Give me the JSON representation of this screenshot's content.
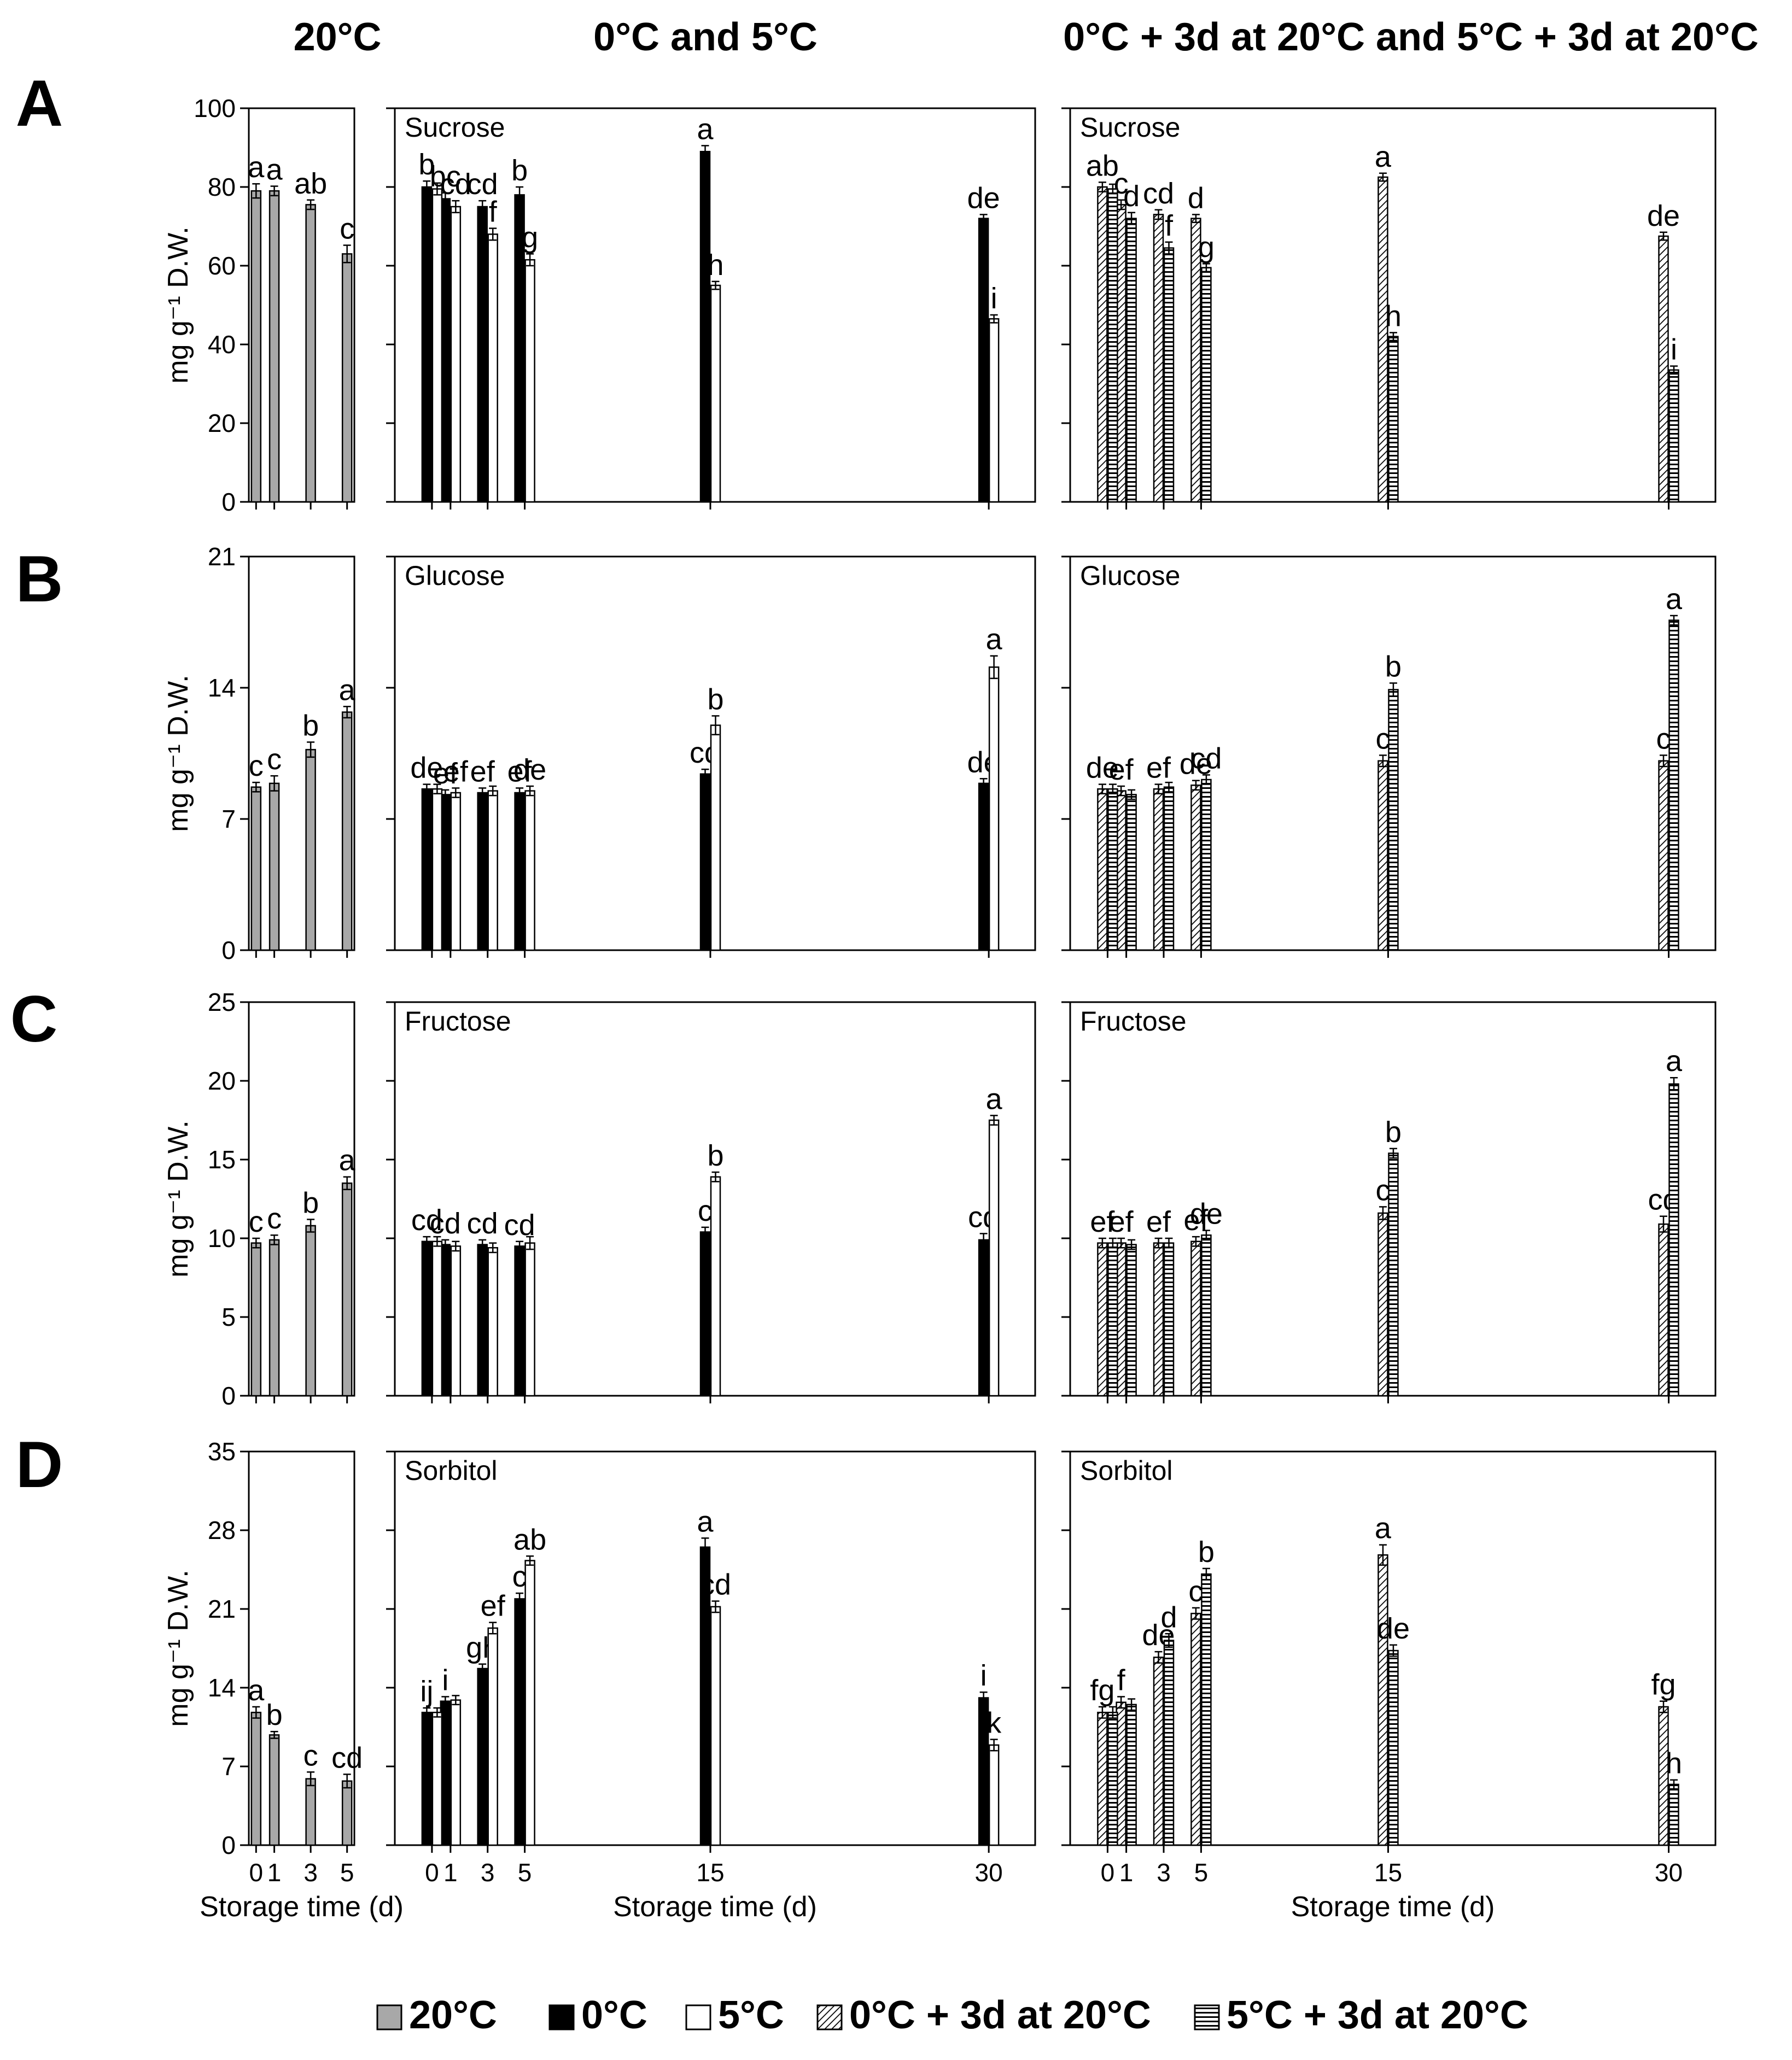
{
  "column_titles": [
    "20°C",
    "0°C and 5°C",
    "0°C + 3d at 20°C and 5°C + 3d at 20°C"
  ],
  "ylabel": "mg g⁻¹ D.W.",
  "xlabel": "Storage time (d)",
  "legend": [
    {
      "label": "20°C",
      "style": "gray"
    },
    {
      "label": "0°C",
      "style": "black"
    },
    {
      "label": "5°C",
      "style": "white"
    },
    {
      "label": "0°C + 3d at 20°C",
      "style": "diag"
    },
    {
      "label": "5°C + 3d at 20°C",
      "style": "horiz"
    }
  ],
  "colors": {
    "gray": "#a8a8a8",
    "black": "#000000",
    "white": "#ffffff"
  },
  "chart_data": [
    {
      "type": "bar",
      "row": "A",
      "column": "20°C",
      "title": "",
      "x": [
        0,
        1,
        3,
        5
      ],
      "xticks": [
        "0",
        "1",
        "3",
        "5"
      ],
      "xlim": [
        -0.4,
        5.4
      ],
      "ylim": [
        0,
        100
      ],
      "yticks": [
        0,
        20,
        40,
        60,
        80,
        100
      ],
      "series": [
        {
          "name": "20°C",
          "style": "gray",
          "values": [
            79,
            79,
            75.5,
            63
          ],
          "errors": [
            1.8,
            1.2,
            1.2,
            2.2
          ],
          "labels": [
            "a",
            "a",
            "ab",
            "c"
          ]
        }
      ]
    },
    {
      "type": "bar",
      "row": "A",
      "column": "0°C and 5°C",
      "title": "Sucrose",
      "x": [
        0,
        1,
        3,
        5,
        15,
        30
      ],
      "xticks": [
        "0",
        "1",
        "3",
        "5",
        "15",
        "30"
      ],
      "xlim": [
        -2,
        32.5
      ],
      "ylim": [
        0,
        100
      ],
      "yticks": [
        0,
        20,
        40,
        60,
        80,
        100
      ],
      "series": [
        {
          "name": "0°C",
          "style": "black",
          "values": [
            80,
            77,
            75,
            78,
            89,
            72
          ],
          "errors": [
            1.5,
            1.5,
            1.5,
            2,
            1.5,
            1
          ],
          "labels": [
            "b",
            "bc",
            "cd",
            "b",
            "a",
            "de"
          ]
        },
        {
          "name": "5°C",
          "style": "white",
          "values": [
            79.5,
            75,
            68,
            61.5,
            55,
            46.5
          ],
          "errors": [
            1.5,
            1.5,
            1.5,
            1.5,
            1,
            1
          ],
          "labels": [
            "",
            "cd",
            "f",
            "g",
            "h",
            "i"
          ]
        }
      ]
    },
    {
      "type": "bar",
      "row": "A",
      "column": "0°C + 3d at 20°C and 5°C + 3d at 20°C",
      "title": "Sucrose",
      "x": [
        0,
        1,
        3,
        5,
        15,
        30
      ],
      "xticks": [
        "0",
        "1",
        "3",
        "5",
        "15",
        "30"
      ],
      "xlim": [
        -2,
        32.5
      ],
      "ylim": [
        0,
        100
      ],
      "yticks": [
        0,
        20,
        40,
        60,
        80,
        100
      ],
      "series": [
        {
          "name": "0°C + 3d at 20°C",
          "style": "diag",
          "values": [
            80,
            75.5,
            73,
            72,
            82.5,
            67.5
          ],
          "errors": [
            1.2,
            1.2,
            1.2,
            1,
            1,
            1
          ],
          "labels": [
            "ab",
            "c",
            "cd",
            "d",
            "a",
            "de"
          ]
        },
        {
          "name": "5°C + 3d at 20°C",
          "style": "horiz",
          "values": [
            79.5,
            72,
            64.5,
            59.5,
            42,
            33.5
          ],
          "errors": [
            1.2,
            1.5,
            1.5,
            1,
            1,
            1
          ],
          "labels": [
            "",
            "d",
            "f",
            "g",
            "h",
            "i"
          ]
        }
      ]
    },
    {
      "type": "bar",
      "row": "B",
      "column": "20°C",
      "title": "",
      "x": [
        0,
        1,
        3,
        5
      ],
      "xticks": [
        "0",
        "1",
        "3",
        "5"
      ],
      "xlim": [
        -0.4,
        5.4
      ],
      "ylim": [
        0,
        21
      ],
      "yticks": [
        0,
        7,
        14,
        21
      ],
      "series": [
        {
          "name": "20°C",
          "style": "gray",
          "values": [
            8.7,
            8.9,
            10.7,
            12.7
          ],
          "errors": [
            0.25,
            0.4,
            0.4,
            0.3
          ],
          "labels": [
            "c",
            "c",
            "b",
            "a"
          ]
        }
      ]
    },
    {
      "type": "bar",
      "row": "B",
      "column": "0°C and 5°C",
      "title": "Glucose",
      "x": [
        0,
        1,
        3,
        5,
        15,
        30
      ],
      "xticks": [
        "0",
        "1",
        "3",
        "5",
        "15",
        "30"
      ],
      "xlim": [
        -2,
        32.5
      ],
      "ylim": [
        0,
        21
      ],
      "yticks": [
        0,
        7,
        14,
        21
      ],
      "series": [
        {
          "name": "0°C",
          "style": "black",
          "values": [
            8.6,
            8.3,
            8.4,
            8.4,
            9.4,
            8.9
          ],
          "errors": [
            0.25,
            0.25,
            0.25,
            0.25,
            0.25,
            0.25
          ],
          "labels": [
            "de",
            "ef",
            "ef",
            "ef",
            "cd",
            "de"
          ]
        },
        {
          "name": "5°C",
          "style": "white",
          "values": [
            8.6,
            8.4,
            8.5,
            8.5,
            12,
            15.1
          ],
          "errors": [
            0.25,
            0.25,
            0.25,
            0.25,
            0.5,
            0.6
          ],
          "labels": [
            "",
            "ef",
            "",
            "de",
            "b",
            "a"
          ]
        }
      ]
    },
    {
      "type": "bar",
      "row": "B",
      "column": "0°C + 3d at 20°C and 5°C + 3d at 20°C",
      "title": "Glucose",
      "x": [
        0,
        1,
        3,
        5,
        15,
        30
      ],
      "xticks": [
        "0",
        "1",
        "3",
        "5",
        "15",
        "30"
      ],
      "xlim": [
        -2,
        32.5
      ],
      "ylim": [
        0,
        21
      ],
      "yticks": [
        0,
        7,
        14,
        21
      ],
      "series": [
        {
          "name": "0°C + 3d at 20°C",
          "style": "diag",
          "values": [
            8.6,
            8.5,
            8.6,
            8.8,
            10.1,
            10.1
          ],
          "errors": [
            0.25,
            0.25,
            0.25,
            0.25,
            0.3,
            0.3
          ],
          "labels": [
            "de",
            "ef",
            "ef",
            "de",
            "c",
            "c"
          ]
        },
        {
          "name": "5°C + 3d at 20°C",
          "style": "horiz",
          "values": [
            8.6,
            8.3,
            8.7,
            9.1,
            13.9,
            17.6
          ],
          "errors": [
            0.25,
            0.25,
            0.25,
            0.25,
            0.35,
            0.25
          ],
          "labels": [
            "",
            "",
            "",
            "cd",
            "b",
            "a"
          ]
        }
      ]
    },
    {
      "type": "bar",
      "row": "C",
      "column": "20°C",
      "title": "",
      "x": [
        0,
        1,
        3,
        5
      ],
      "xticks": [
        "0",
        "1",
        "3",
        "5"
      ],
      "xlim": [
        -0.4,
        5.4
      ],
      "ylim": [
        0,
        25
      ],
      "yticks": [
        0,
        5,
        10,
        15,
        20,
        25
      ],
      "series": [
        {
          "name": "20°C",
          "style": "gray",
          "values": [
            9.7,
            9.9,
            10.8,
            13.5
          ],
          "errors": [
            0.3,
            0.3,
            0.4,
            0.4
          ],
          "labels": [
            "c",
            "c",
            "b",
            "a"
          ]
        }
      ]
    },
    {
      "type": "bar",
      "row": "C",
      "column": "0°C and 5°C",
      "title": "Fructose",
      "x": [
        0,
        1,
        3,
        5,
        15,
        30
      ],
      "xticks": [
        "0",
        "1",
        "3",
        "5",
        "15",
        "30"
      ],
      "xlim": [
        -2,
        32.5
      ],
      "ylim": [
        0,
        25
      ],
      "yticks": [
        0,
        5,
        10,
        15,
        20,
        25
      ],
      "series": [
        {
          "name": "0°C",
          "style": "black",
          "values": [
            9.8,
            9.6,
            9.6,
            9.5,
            10.4,
            9.9
          ],
          "errors": [
            0.3,
            0.3,
            0.3,
            0.3,
            0.3,
            0.4
          ],
          "labels": [
            "cd",
            "cd",
            "cd",
            "cd",
            "c",
            "cd"
          ]
        },
        {
          "name": "5°C",
          "style": "white",
          "values": [
            9.8,
            9.5,
            9.4,
            9.7,
            13.9,
            17.5
          ],
          "errors": [
            0.3,
            0.3,
            0.3,
            0.4,
            0.3,
            0.3
          ],
          "labels": [
            "",
            "",
            "",
            "",
            "b",
            "a"
          ]
        }
      ]
    },
    {
      "type": "bar",
      "row": "C",
      "column": "0°C + 3d at 20°C and 5°C + 3d at 20°C",
      "title": "Fructose",
      "x": [
        0,
        1,
        3,
        5,
        15,
        30
      ],
      "xticks": [
        "0",
        "1",
        "3",
        "5",
        "15",
        "30"
      ],
      "xlim": [
        -2,
        32.5
      ],
      "ylim": [
        0,
        25
      ],
      "yticks": [
        0,
        5,
        10,
        15,
        20,
        25
      ],
      "series": [
        {
          "name": "0°C + 3d at 20°C",
          "style": "diag",
          "values": [
            9.7,
            9.7,
            9.7,
            9.8,
            11.6,
            10.9
          ],
          "errors": [
            0.3,
            0.3,
            0.3,
            0.3,
            0.4,
            0.5
          ],
          "labels": [
            "ef",
            "ef",
            "ef",
            "ef",
            "c",
            "cd"
          ]
        },
        {
          "name": "5°C + 3d at 20°C",
          "style": "horiz",
          "values": [
            9.7,
            9.6,
            9.7,
            10.2,
            15.4,
            19.8
          ],
          "errors": [
            0.3,
            0.3,
            0.3,
            0.3,
            0.3,
            0.4
          ],
          "labels": [
            "",
            "",
            "",
            "de",
            "b",
            "a"
          ]
        }
      ]
    },
    {
      "type": "bar",
      "row": "D",
      "column": "20°C",
      "title": "",
      "x": [
        0,
        1,
        3,
        5
      ],
      "xticks": [
        "0",
        "1",
        "3",
        "5"
      ],
      "xlim": [
        -0.4,
        5.4
      ],
      "ylim": [
        0,
        35
      ],
      "yticks": [
        0,
        7,
        14,
        21,
        28,
        35
      ],
      "series": [
        {
          "name": "20°C",
          "style": "gray",
          "values": [
            11.8,
            9.8,
            5.9,
            5.7
          ],
          "errors": [
            0.5,
            0.3,
            0.6,
            0.6
          ],
          "labels": [
            "a",
            "b",
            "c",
            "cd"
          ]
        }
      ]
    },
    {
      "type": "bar",
      "row": "D",
      "column": "0°C and 5°C",
      "title": "Sorbitol",
      "x": [
        0,
        1,
        3,
        5,
        15,
        30
      ],
      "xticks": [
        "0",
        "1",
        "3",
        "5",
        "15",
        "30"
      ],
      "xlim": [
        -2,
        32.5
      ],
      "ylim": [
        0,
        35
      ],
      "yticks": [
        0,
        7,
        14,
        21,
        28,
        35
      ],
      "series": [
        {
          "name": "0°C",
          "style": "black",
          "values": [
            11.8,
            12.8,
            15.7,
            21.9,
            26.5,
            13.1
          ],
          "errors": [
            0.4,
            0.4,
            0.4,
            0.5,
            0.8,
            0.5
          ],
          "labels": [
            "ij",
            "i",
            "gh",
            "c",
            "a",
            "i"
          ]
        },
        {
          "name": "5°C",
          "style": "white",
          "values": [
            11.8,
            12.9,
            19.3,
            25.3,
            21.2,
            8.9
          ],
          "errors": [
            0.4,
            0.4,
            0.5,
            0.4,
            0.5,
            0.5
          ],
          "labels": [
            "",
            "",
            "ef",
            "ab",
            "cd",
            "k"
          ]
        }
      ]
    },
    {
      "type": "bar",
      "row": "D",
      "column": "0°C + 3d at 20°C and 5°C + 3d at 20°C",
      "title": "Sorbitol",
      "x": [
        0,
        1,
        3,
        5,
        15,
        30
      ],
      "xticks": [
        "0",
        "1",
        "3",
        "5",
        "15",
        "30"
      ],
      "xlim": [
        -2,
        32.5
      ],
      "ylim": [
        0,
        35
      ],
      "yticks": [
        0,
        7,
        14,
        21,
        28,
        35
      ],
      "series": [
        {
          "name": "0°C + 3d at 20°C",
          "style": "diag",
          "values": [
            11.8,
            12.7,
            16.7,
            20.6,
            25.8,
            12.3
          ],
          "errors": [
            0.5,
            0.5,
            0.5,
            0.5,
            0.9,
            0.5
          ],
          "labels": [
            "fg",
            "f",
            "de",
            "c",
            "a",
            "fg"
          ]
        },
        {
          "name": "5°C + 3d at 20°C",
          "style": "horiz",
          "values": [
            11.8,
            12.5,
            18.2,
            24.1,
            17.3,
            5.4
          ],
          "errors": [
            0.5,
            0.5,
            0.6,
            0.5,
            0.5,
            0.4
          ],
          "labels": [
            "",
            "",
            "d",
            "b",
            "de",
            "h"
          ]
        }
      ]
    }
  ]
}
